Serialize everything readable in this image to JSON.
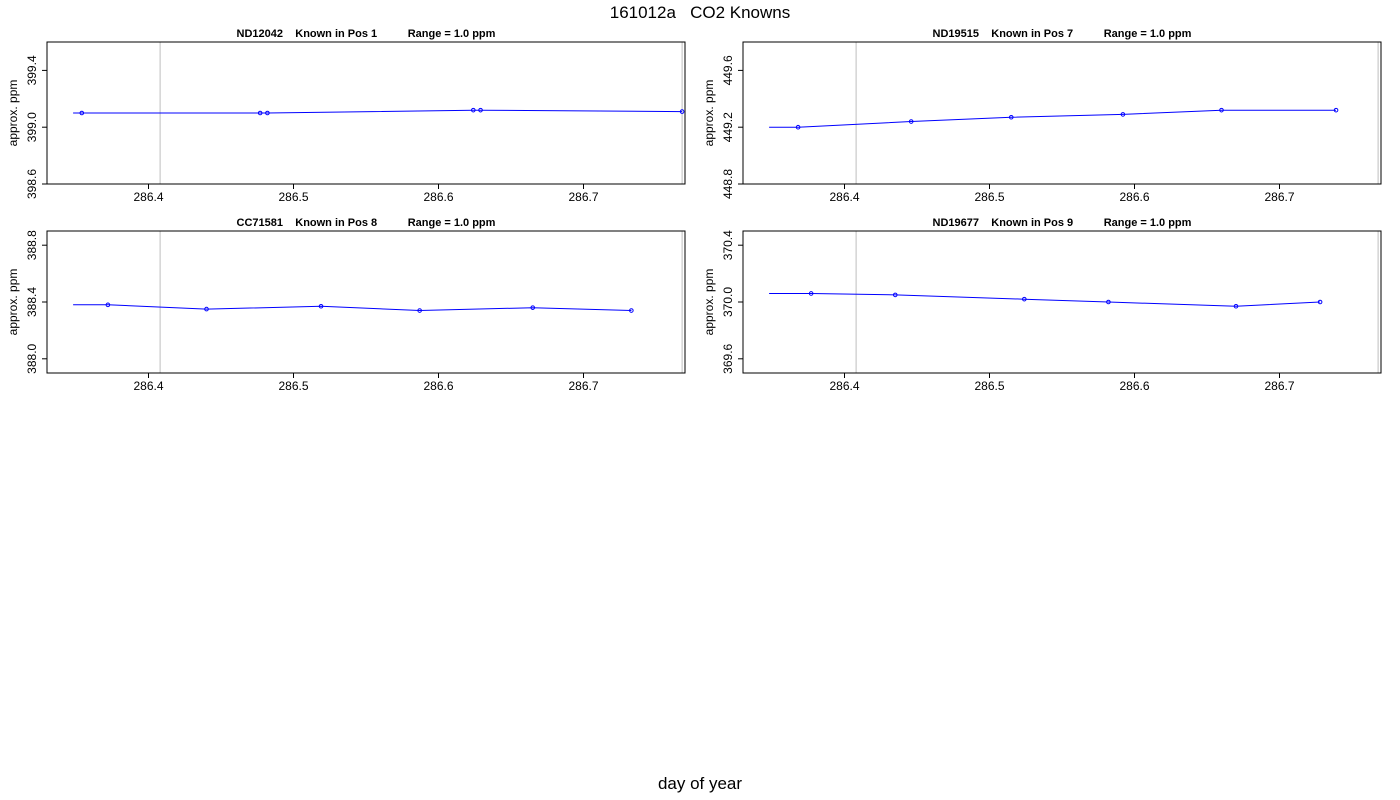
{
  "title": "161012a   CO2 Knowns",
  "xlabel": "day of year",
  "colors": {
    "series": "#0000ff",
    "frame": "#000000",
    "vline": "#bebebe"
  },
  "chart_data": [
    {
      "type": "line",
      "title": "ND12042    Known in Pos 1          Range = 1.0 ppm",
      "ylabel": "approx. ppm",
      "xlim": [
        286.33,
        286.77
      ],
      "ylim": [
        398.6,
        399.6
      ],
      "xticks": [
        "286.4",
        "286.5",
        "286.6",
        "286.7"
      ],
      "yticks": [
        "398.6",
        "399.0",
        "399.4"
      ],
      "vlines": [
        286.408,
        286.768
      ],
      "line_x_start": 286.348,
      "x": [
        286.354,
        286.477,
        286.482,
        286.624,
        286.629,
        286.768
      ],
      "y": [
        399.1,
        399.1,
        399.1,
        399.12,
        399.12,
        399.11
      ]
    },
    {
      "type": "line",
      "title": "ND19515    Known in Pos 7          Range = 1.0 ppm",
      "ylabel": "approx. ppm",
      "xlim": [
        286.33,
        286.77
      ],
      "ylim": [
        448.8,
        449.8
      ],
      "xticks": [
        "286.4",
        "286.5",
        "286.6",
        "286.7"
      ],
      "yticks": [
        "448.8",
        "449.2",
        "449.6"
      ],
      "vlines": [
        286.408,
        286.768
      ],
      "line_x_start": 286.348,
      "x": [
        286.368,
        286.446,
        286.515,
        286.592,
        286.66,
        286.739
      ],
      "y": [
        449.2,
        449.24,
        449.27,
        449.29,
        449.32,
        449.32
      ]
    },
    {
      "type": "line",
      "title": "CC71581    Known in Pos 8          Range = 1.0 ppm",
      "ylabel": "approx. ppm",
      "xlim": [
        286.33,
        286.77
      ],
      "ylim": [
        387.9,
        388.9
      ],
      "xticks": [
        "286.4",
        "286.5",
        "286.6",
        "286.7"
      ],
      "yticks": [
        "388.0",
        "388.4",
        "388.8"
      ],
      "vlines": [
        286.408,
        286.768
      ],
      "line_x_start": 286.348,
      "x": [
        286.372,
        286.44,
        286.519,
        286.587,
        286.665,
        286.733
      ],
      "y": [
        388.38,
        388.35,
        388.37,
        388.34,
        388.36,
        388.34
      ]
    },
    {
      "type": "line",
      "title": "ND19677    Known in Pos 9          Range = 1.0 ppm",
      "ylabel": "approx. ppm",
      "xlim": [
        286.33,
        286.77
      ],
      "ylim": [
        369.5,
        370.5
      ],
      "xticks": [
        "286.4",
        "286.5",
        "286.6",
        "286.7"
      ],
      "yticks": [
        "369.6",
        "370.0",
        "370.4"
      ],
      "vlines": [
        286.408,
        286.768
      ],
      "line_x_start": 286.348,
      "x": [
        286.377,
        286.435,
        286.524,
        286.582,
        286.67,
        286.728
      ],
      "y": [
        370.06,
        370.05,
        370.02,
        370.0,
        369.97,
        370.0
      ]
    }
  ]
}
